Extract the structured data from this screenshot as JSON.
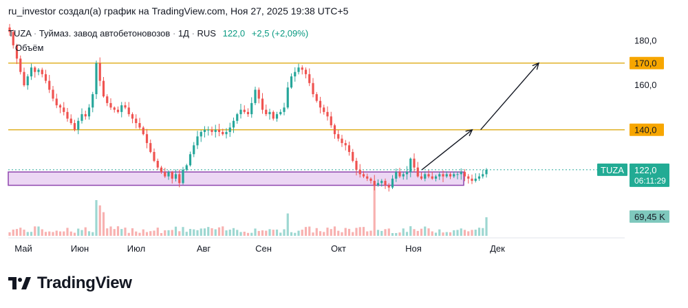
{
  "header": {
    "author_line": "ru_investor создал(а) график на TradingView.com, Ноя 27, 2025 19:38 UTC+5"
  },
  "legend": {
    "ticker": "TUZA",
    "name": "Туймаз. завод автобетоновозов",
    "interval": "1Д",
    "exchange": "RUS",
    "price": "122,0",
    "change": "+2,5 (+2,09%)",
    "volume_label": "Объём"
  },
  "footer": {
    "brand": "TradingView"
  },
  "colors": {
    "up": "#26a69a",
    "down": "#ef5350",
    "level": "#e0b127",
    "zone_fill": "#e6c9f0",
    "zone_stroke": "#8e44ad",
    "price_badge": "#22ab94"
  },
  "chart_data": {
    "type": "candlestick",
    "symbol": "TUZA",
    "x_labels": [
      "Май",
      "Июн",
      "Июл",
      "Авг",
      "Сен",
      "Окт",
      "Ноя",
      "Дек"
    ],
    "y_ticks": [
      "160,0",
      "180,0"
    ],
    "ylim": [
      113,
      186
    ],
    "horizontal_levels": [
      {
        "value": 170.0,
        "label": "170,0"
      },
      {
        "value": 140.0,
        "label": "140,0"
      }
    ],
    "support_zone": {
      "low": 115,
      "high": 121,
      "from_month": "Май",
      "to_month": "Ноя"
    },
    "last_price": {
      "value": 122.0,
      "label": "122,0",
      "countdown": "06:11:29",
      "ticker_badge": "TUZA"
    },
    "last_volume_label": "69,45 K",
    "projection_arrows": [
      {
        "from_month_pos": 6.1,
        "from": 122,
        "to_month_pos": 6.7,
        "to": 140
      },
      {
        "from_month_pos": 6.8,
        "from": 140,
        "to_month_pos": 7.6,
        "to": 170
      }
    ],
    "ohlc_daily_closes": [
      184,
      178,
      172,
      166,
      160,
      164,
      168,
      166,
      167,
      165,
      162,
      158,
      154,
      151,
      150,
      148,
      145,
      143,
      140,
      144,
      147,
      146,
      150,
      156,
      170,
      162,
      155,
      152,
      150,
      149,
      148,
      151,
      150,
      147,
      145,
      143,
      141,
      138,
      134,
      130,
      126,
      123,
      121,
      119,
      121,
      118,
      120,
      116,
      122,
      124,
      129,
      133,
      137,
      139,
      140,
      140,
      139,
      140,
      139,
      138,
      139,
      141,
      144,
      147,
      149,
      148,
      147,
      152,
      158,
      154,
      149,
      147,
      148,
      145,
      147,
      148,
      150,
      159,
      164,
      166,
      168,
      167,
      165,
      161,
      156,
      153,
      150,
      148,
      146,
      142,
      138,
      136,
      134,
      133,
      130,
      126,
      122,
      120,
      119,
      118,
      117,
      115,
      116,
      117,
      115,
      114,
      118,
      121,
      119,
      120,
      121,
      127,
      123,
      119,
      118,
      120,
      119,
      118,
      119,
      120,
      119,
      120,
      119,
      120,
      120,
      121,
      119,
      118,
      117,
      118,
      119,
      120,
      122
    ]
  }
}
